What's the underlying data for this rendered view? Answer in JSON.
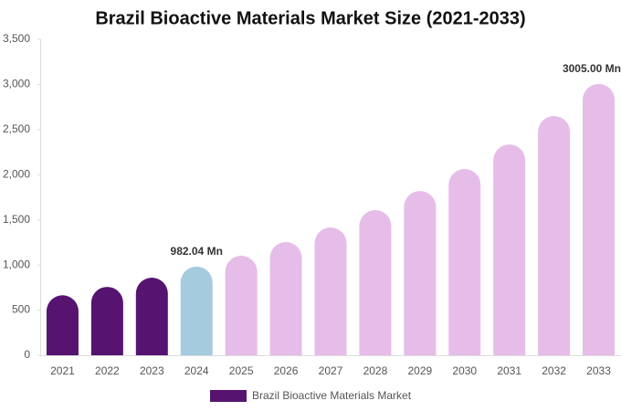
{
  "chart_data": {
    "type": "bar",
    "title": "Brazil Bioactive Materials Market Size (2021-2033)",
    "categories": [
      "2021",
      "2022",
      "2023",
      "2024",
      "2025",
      "2026",
      "2027",
      "2028",
      "2029",
      "2030",
      "2031",
      "2032",
      "2033"
    ],
    "series": [
      {
        "name": "Brazil Bioactive Materials Market",
        "color": "#561470",
        "values": [
          665,
          758,
          860,
          982.04,
          1102,
          1254,
          1416,
          1608,
          1820,
          2063,
          2336,
          2650,
          3005
        ],
        "value_labels": [
          null,
          null,
          null,
          "982.04 Mn",
          null,
          null,
          null,
          null,
          null,
          null,
          null,
          null,
          "3005.00 Mn"
        ],
        "bar_colors": [
          "#561470",
          "#561470",
          "#561470",
          "#a4cbde",
          "#e6bde8",
          "#e6bde8",
          "#e6bde8",
          "#e6bde8",
          "#e6bde8",
          "#e6bde8",
          "#e6bde8",
          "#e6bde8",
          "#e6bde8"
        ]
      }
    ],
    "ylim": [
      0,
      3500
    ],
    "yticks": [
      0,
      500,
      {
        "value": 1000,
        "label": "1,000"
      },
      {
        "value": 1500,
        "label": "1,500"
      },
      {
        "value": 2000,
        "label": "2,000"
      },
      {
        "value": 2500,
        "label": "2,500"
      },
      {
        "value": 3000,
        "label": "3,000"
      },
      {
        "value": 3500,
        "label": "3,500"
      }
    ],
    "grid": false,
    "legend": "bottom"
  }
}
